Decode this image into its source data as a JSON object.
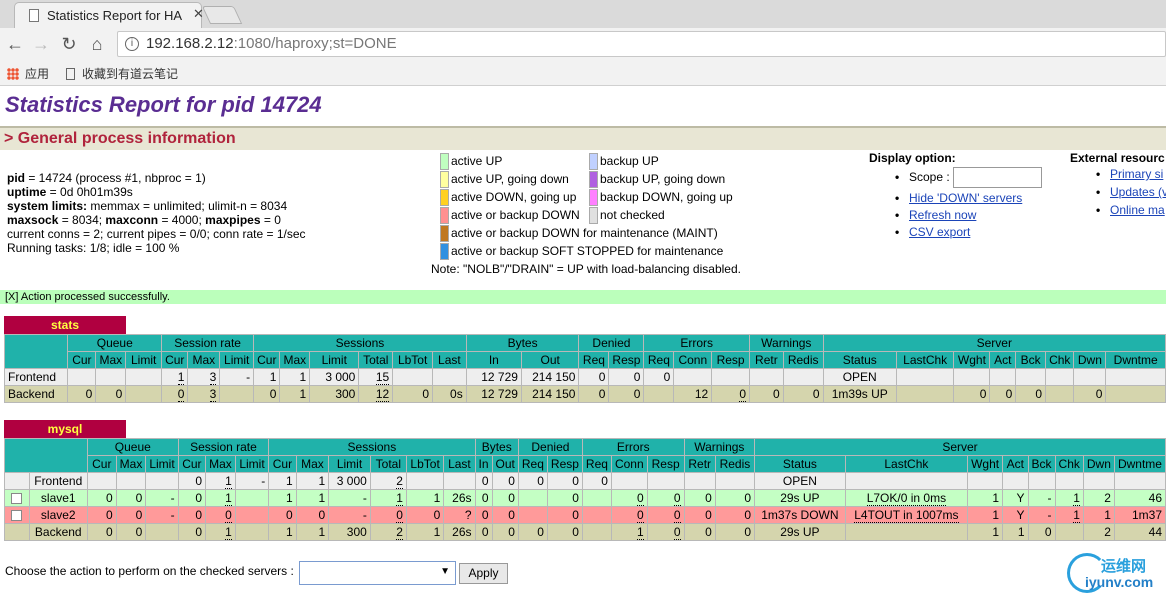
{
  "browser": {
    "tab_title": "Statistics Report for HA",
    "url_host": "192.168.2.12",
    "url_rest": ":1080/haproxy;st=DONE",
    "bookmarks": [
      "应用",
      "收藏到有道云笔记"
    ]
  },
  "page": {
    "title": "Statistics Report for pid 14724",
    "section_title": "> General process information",
    "process_info": {
      "line1_key": "pid",
      "line1_val": " = 14724 (process #1, nbproc = 1)",
      "line2_key": "uptime",
      "line2_val": " = 0d 0h01m39s",
      "line3_key": "system limits:",
      "line3_val": " memmax = unlimited; ulimit-n = 8034",
      "line4_k1": "maxsock",
      "line4_v1": " = 8034; ",
      "line4_k2": "maxconn",
      "line4_v2": " = 4000; ",
      "line4_k3": "maxpipes",
      "line4_v3": " = 0",
      "line5": "current conns = 2; current pipes = 0/0; conn rate = 1/sec",
      "line6": "Running tasks: 1/8; idle = 100 %"
    },
    "legend": [
      {
        "label": "active UP",
        "color": "#c0ffc0"
      },
      {
        "label": "active UP, going down",
        "color": "#ffffa0"
      },
      {
        "label": "active DOWN, going up",
        "color": "#ffd020"
      },
      {
        "label": "active or backup DOWN",
        "color": "#ff9090"
      },
      {
        "label": "active or backup DOWN for maintenance (MAINT)",
        "color": "#c07820"
      },
      {
        "label": "active or backup SOFT STOPPED for maintenance",
        "color": "#3090e0"
      },
      {
        "label": "backup UP",
        "color": "#c0d0ff"
      },
      {
        "label": "backup UP, going down",
        "color": "#b060e0"
      },
      {
        "label": "backup DOWN, going up",
        "color": "#ff80ff"
      },
      {
        "label": "not checked",
        "color": "#e0e0e0"
      }
    ],
    "legend_note": "Note: \"NOLB\"/\"DRAIN\" = UP with load-balancing disabled.",
    "display_option": {
      "heading": "Display option:",
      "scope_label": "Scope :",
      "links": [
        "Hide 'DOWN' servers",
        "Refresh now",
        "CSV export"
      ]
    },
    "external_resources": {
      "heading": "External resourc",
      "links": [
        "Primary si",
        "Updates (v",
        "Online ma"
      ]
    },
    "message": "[X] Action processed successfully.",
    "action_label": "Choose the action to perform on the checked servers :",
    "action_select": "",
    "apply_label": "Apply",
    "watermark": [
      "运维网",
      "iyunv.com"
    ]
  },
  "headers": {
    "groups": [
      "Queue",
      "Session rate",
      "Sessions",
      "Bytes",
      "Denied",
      "Errors",
      "Warnings",
      "Server"
    ],
    "sub": [
      "Cur",
      "Max",
      "Limit",
      "Cur",
      "Max",
      "Limit",
      "Cur",
      "Max",
      "Limit",
      "Total",
      "LbTot",
      "Last",
      "In",
      "Out",
      "Req",
      "Resp",
      "Req",
      "Conn",
      "Resp",
      "Retr",
      "Redis",
      "Status",
      "LastChk",
      "Wght",
      "Act",
      "Bck",
      "Chk",
      "Dwn",
      "Dwntme"
    ]
  },
  "stats": {
    "name": "stats",
    "rows": [
      {
        "cls": "r-front",
        "name": "Frontend",
        "cells": [
          "",
          "",
          "",
          "1",
          "3",
          "-",
          "1",
          "1",
          "3 000",
          "15",
          "",
          "",
          "12 729",
          "214 150",
          "0",
          "0",
          "0",
          "",
          "",
          "",
          "",
          "OPEN",
          "",
          "",
          "",
          "",
          "",
          "",
          ""
        ]
      },
      {
        "cls": "r-back",
        "name": "Backend",
        "cells": [
          "0",
          "0",
          "",
          "0",
          "3",
          "",
          "0",
          "1",
          "300",
          "12",
          "0",
          "0s",
          "12 729",
          "214 150",
          "0",
          "0",
          "",
          "12",
          "0",
          "0",
          "0",
          "1m39s UP",
          "",
          "0",
          "0",
          "0",
          "",
          "0",
          ""
        ]
      }
    ]
  },
  "mysql": {
    "name": "mysql",
    "rows": [
      {
        "cls": "r-front",
        "name": "Frontend",
        "check": false,
        "cells": [
          "",
          "",
          "",
          "0",
          "1",
          "-",
          "1",
          "1",
          "3 000",
          "2",
          "",
          "",
          "0",
          "0",
          "0",
          "0",
          "0",
          "",
          "",
          "",
          "",
          "OPEN",
          "",
          "",
          "",
          "",
          "",
          "",
          ""
        ]
      },
      {
        "cls": "r-up",
        "name": "slave1",
        "check": true,
        "cells": [
          "0",
          "0",
          "-",
          "0",
          "1",
          "",
          "1",
          "1",
          "-",
          "1",
          "1",
          "26s",
          "0",
          "0",
          "",
          "0",
          "",
          "0",
          "0",
          "0",
          "0",
          "29s UP",
          "L7OK/0 in 0ms",
          "1",
          "Y",
          "-",
          "1",
          "2",
          "46"
        ]
      },
      {
        "cls": "r-down",
        "name": "slave2",
        "check": true,
        "cells": [
          "0",
          "0",
          "-",
          "0",
          "0",
          "",
          "0",
          "0",
          "-",
          "0",
          "0",
          "?",
          "0",
          "0",
          "",
          "0",
          "",
          "0",
          "0",
          "0",
          "0",
          "1m37s DOWN",
          "L4TOUT in 1007ms",
          "1",
          "Y",
          "-",
          "1",
          "1",
          "1m37"
        ]
      },
      {
        "cls": "r-back",
        "name": "Backend",
        "check": false,
        "cells": [
          "0",
          "0",
          "",
          "0",
          "1",
          "",
          "1",
          "1",
          "300",
          "2",
          "1",
          "26s",
          "0",
          "0",
          "0",
          "0",
          "",
          "1",
          "0",
          "0",
          "0",
          "29s UP",
          "",
          "1",
          "1",
          "0",
          "",
          "2",
          "44"
        ]
      }
    ]
  }
}
